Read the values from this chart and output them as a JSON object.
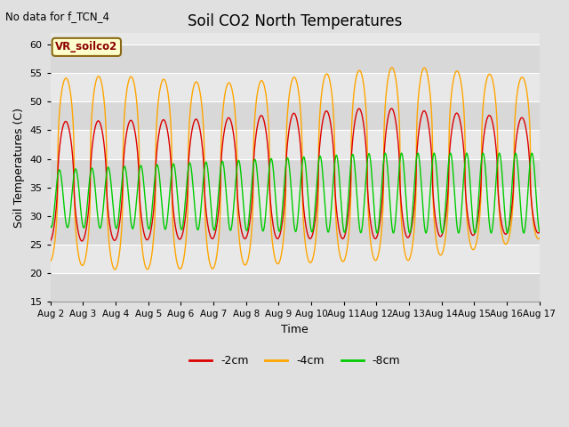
{
  "title": "Soil CO2 North Temperatures",
  "subtitle": "No data for f_TCN_4",
  "xlabel": "Time",
  "ylabel": "Soil Temperatures (C)",
  "ylim": [
    15,
    62
  ],
  "yticks": [
    15,
    20,
    25,
    30,
    35,
    40,
    45,
    50,
    55,
    60
  ],
  "date_labels": [
    "Aug 2",
    "Aug 3",
    "Aug 4",
    "Aug 5",
    "Aug 6",
    "Aug 7",
    "Aug 8",
    "Aug 9",
    "Aug 10",
    "Aug 11",
    "Aug 12",
    "Aug 13",
    "Aug 14",
    "Aug 15",
    "Aug 16",
    "Aug 17"
  ],
  "legend_label": "VR_soilco2",
  "colors": {
    "2cm": "#dd0000",
    "4cm": "#ffa500",
    "8cm": "#00cc00"
  },
  "labels": {
    "2cm": "-2cm",
    "4cm": "-4cm",
    "8cm": "-8cm"
  },
  "bg_color": "#e0e0e0",
  "plot_bg_color": "#e8e8e8",
  "grid_color": "#ffffff",
  "band_colors": [
    "#d8d8d8",
    "#e8e8e8"
  ],
  "n_days": 15,
  "points_per_day": 240
}
